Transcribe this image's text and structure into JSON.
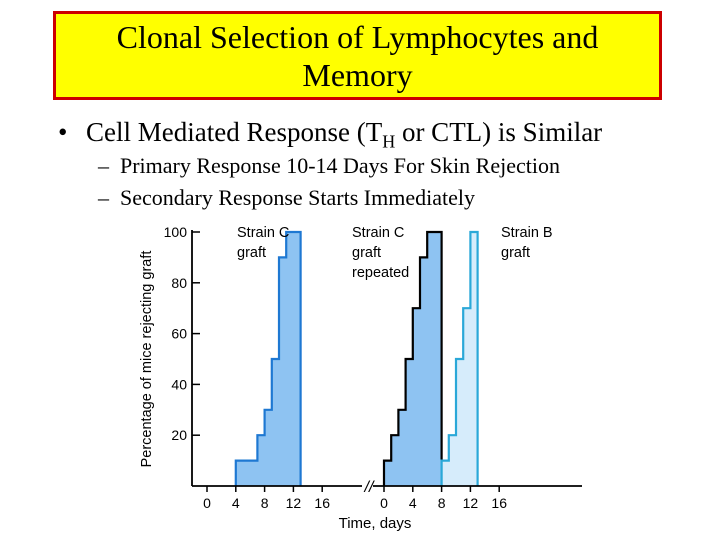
{
  "title": "Clonal Selection of Lymphocytes and\nMemory",
  "bullet": {
    "marker": "•",
    "text_before": "Cell Mediated Response (T",
    "subscript": "H",
    "text_after": " or CTL) is Similar"
  },
  "sub_bullets": [
    {
      "marker": "–",
      "text": "Primary Response 10-14 Days For Skin Rejection"
    },
    {
      "marker": "–",
      "text": "Secondary Response Starts Immediately"
    }
  ],
  "colors": {
    "primary_fill": "#8ec3f2",
    "primary_stroke": "#1e78d2",
    "strain_b_fill": "#d6ecfb",
    "strain_b_stroke": "#2aa8d8"
  },
  "chart_data": {
    "type": "area",
    "xlabel": "Time, days",
    "ylabel": "Percentage of mice rejecting graft",
    "ylim": [
      0,
      100
    ],
    "y_ticks": [
      20,
      40,
      60,
      80,
      100
    ],
    "panels": [
      {
        "x_ticks": [
          0,
          4,
          8,
          12,
          16
        ],
        "xlim": [
          0,
          16
        ]
      },
      {
        "x_ticks": [
          0,
          4,
          8,
          12,
          16
        ],
        "xlim": [
          0,
          16
        ]
      }
    ],
    "axis_break": "//",
    "series": [
      {
        "name": "Strain C\ngraft",
        "panel": 0,
        "x": [
          4,
          6,
          7,
          8,
          9,
          10,
          11,
          12,
          13
        ],
        "y": [
          10,
          10,
          20,
          30,
          50,
          90,
          100,
          100,
          0
        ]
      },
      {
        "name": "Strain C\ngraft\nrepeated",
        "panel": 1,
        "x": [
          0,
          1,
          2,
          3,
          4,
          5,
          6,
          7,
          8
        ],
        "y": [
          10,
          20,
          30,
          50,
          70,
          90,
          100,
          100,
          0
        ]
      },
      {
        "name": "Strain B\ngraft",
        "panel": 1,
        "x": [
          8,
          9,
          10,
          11,
          12,
          13
        ],
        "y": [
          10,
          20,
          50,
          70,
          100,
          0
        ]
      }
    ]
  }
}
